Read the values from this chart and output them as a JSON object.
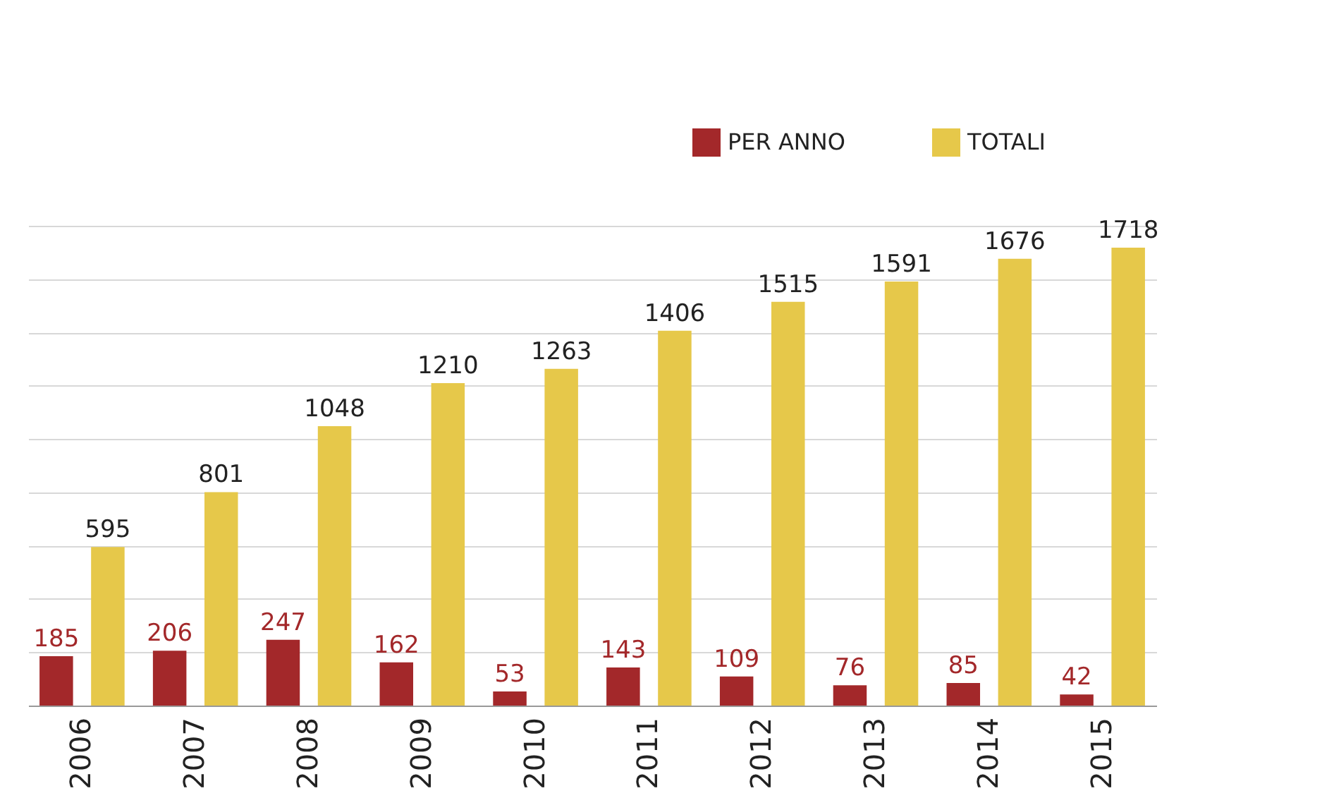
{
  "chart_data": {
    "type": "bar",
    "categories": [
      "2006",
      "2007",
      "2008",
      "2009",
      "2010",
      "2011",
      "2012",
      "2013",
      "2014",
      "2015"
    ],
    "series": [
      {
        "name": "PER ANNO",
        "color": "#a3282a",
        "values": [
          185,
          206,
          247,
          162,
          53,
          143,
          109,
          76,
          85,
          42
        ]
      },
      {
        "name": "TOTALI",
        "color": "#e6c84a",
        "values": [
          595,
          801,
          1048,
          1210,
          1263,
          1406,
          1515,
          1591,
          1676,
          1718
        ]
      }
    ],
    "tick_labels": "x",
    "grid": "y",
    "legend": "top right",
    "data_labels": true
  }
}
